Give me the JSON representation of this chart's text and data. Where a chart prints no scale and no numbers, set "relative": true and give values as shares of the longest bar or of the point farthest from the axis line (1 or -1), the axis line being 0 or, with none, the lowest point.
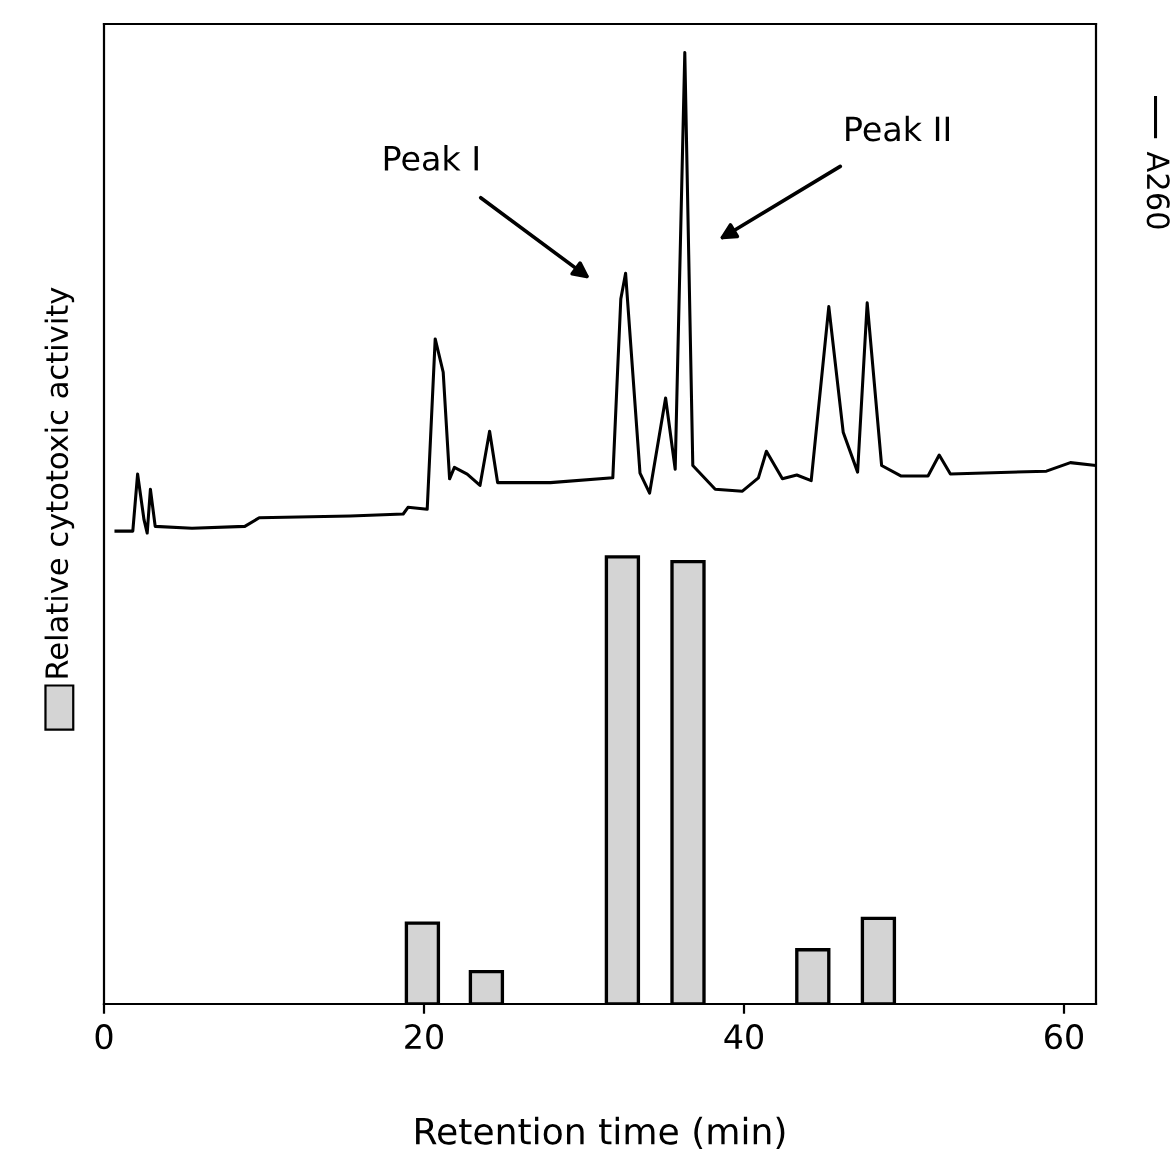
{
  "chart_data": {
    "type": "bar",
    "relative": true,
    "xlabel": "Retention time (min)",
    "xlim": [
      0,
      62
    ],
    "xticks": [
      0,
      20,
      40,
      60
    ],
    "grid": false,
    "ylabel": "Relative cytotoxic activity",
    "series": [
      {
        "color": "#d4d4d4",
        "x": [
          19.9,
          23.9,
          32.4,
          36.5,
          44.3,
          48.4
        ],
        "values": [
          0.085,
          0.034,
          0.47,
          0.465,
          0.057,
          0.09
        ]
      },
      {
        "type": "line",
        "color": "#000000",
        "line_style": "solid",
        "marker": "none",
        "x": [
          0.75,
          1.8,
          2.1,
          2.5,
          2.7,
          2.9,
          3.2,
          5.5,
          8.8,
          9.7,
          15.4,
          18.7,
          19.0,
          20.2,
          20.7,
          21.2,
          21.6,
          21.9,
          22.7,
          23.5,
          24.1,
          24.6,
          27.9,
          31.8,
          32.3,
          32.6,
          33.5,
          34.1,
          35.1,
          35.7,
          36.3,
          36.8,
          38.2,
          39.9,
          40.9,
          41.4,
          42.4,
          43.3,
          44.2,
          45.3,
          46.2,
          47.1,
          47.7,
          48.6,
          49.8,
          51.5,
          52.2,
          52.9,
          58.9,
          60.4,
          62.0
        ],
        "values": [
          0.497,
          0.497,
          0.557,
          0.509,
          0.495,
          0.541,
          0.502,
          0.5,
          0.502,
          0.511,
          0.513,
          0.515,
          0.522,
          0.52,
          0.699,
          0.664,
          0.552,
          0.564,
          0.557,
          0.545,
          0.602,
          0.548,
          0.548,
          0.553,
          0.741,
          0.768,
          0.558,
          0.537,
          0.637,
          0.562,
          1.0,
          0.566,
          0.541,
          0.539,
          0.553,
          0.581,
          0.552,
          0.556,
          0.55,
          0.733,
          0.601,
          0.559,
          0.737,
          0.566,
          0.555,
          0.555,
          0.577,
          0.557,
          0.56,
          0.569,
          0.566
        ]
      }
    ],
    "annotations": [
      "Peak I",
      "Peak II",
      "A260"
    ]
  }
}
